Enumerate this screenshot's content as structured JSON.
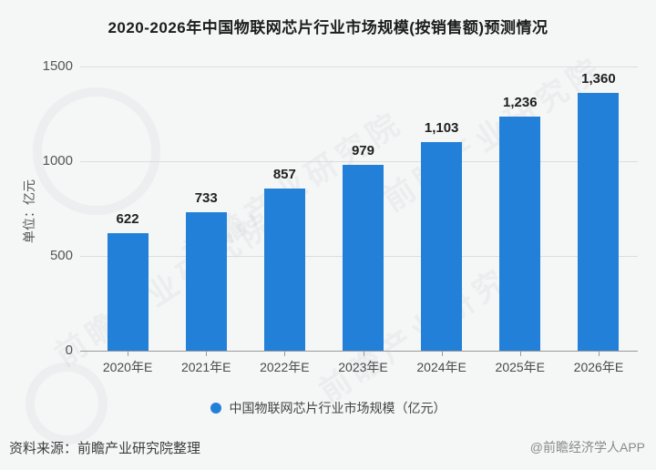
{
  "header": {
    "title": "2020-2026年中国物联网芯片行业市场规模(按销售额)预测情况"
  },
  "chart_data": {
    "type": "bar",
    "title": "2020-2026年中国物联网芯片行业市场规模(按销售额)预测情况",
    "categories": [
      "2020年E",
      "2021年E",
      "2022年E",
      "2023年E",
      "2024年E",
      "2025年E",
      "2026年E"
    ],
    "values": [
      622,
      733,
      857,
      979,
      1103,
      1236,
      1360
    ],
    "value_labels": [
      "622",
      "733",
      "857",
      "979",
      "1,103",
      "1,236",
      "1,360"
    ],
    "ylabel": "单位：亿元",
    "ylim": [
      0,
      1500
    ],
    "yticks": [
      0,
      500,
      1000,
      1500
    ],
    "grid": true,
    "bar_color": "#2380d9",
    "legend": "中国物联网芯片行业市场规模（亿元）",
    "legend_position": "bottom"
  },
  "legend": {
    "label": "中国物联网芯片行业市场规模（亿元）"
  },
  "footer": {
    "source": "资料来源：前瞻产业研究院整理",
    "credit": "@前瞻经济学人APP"
  },
  "watermark": {
    "text": "前瞻产业研究院"
  }
}
